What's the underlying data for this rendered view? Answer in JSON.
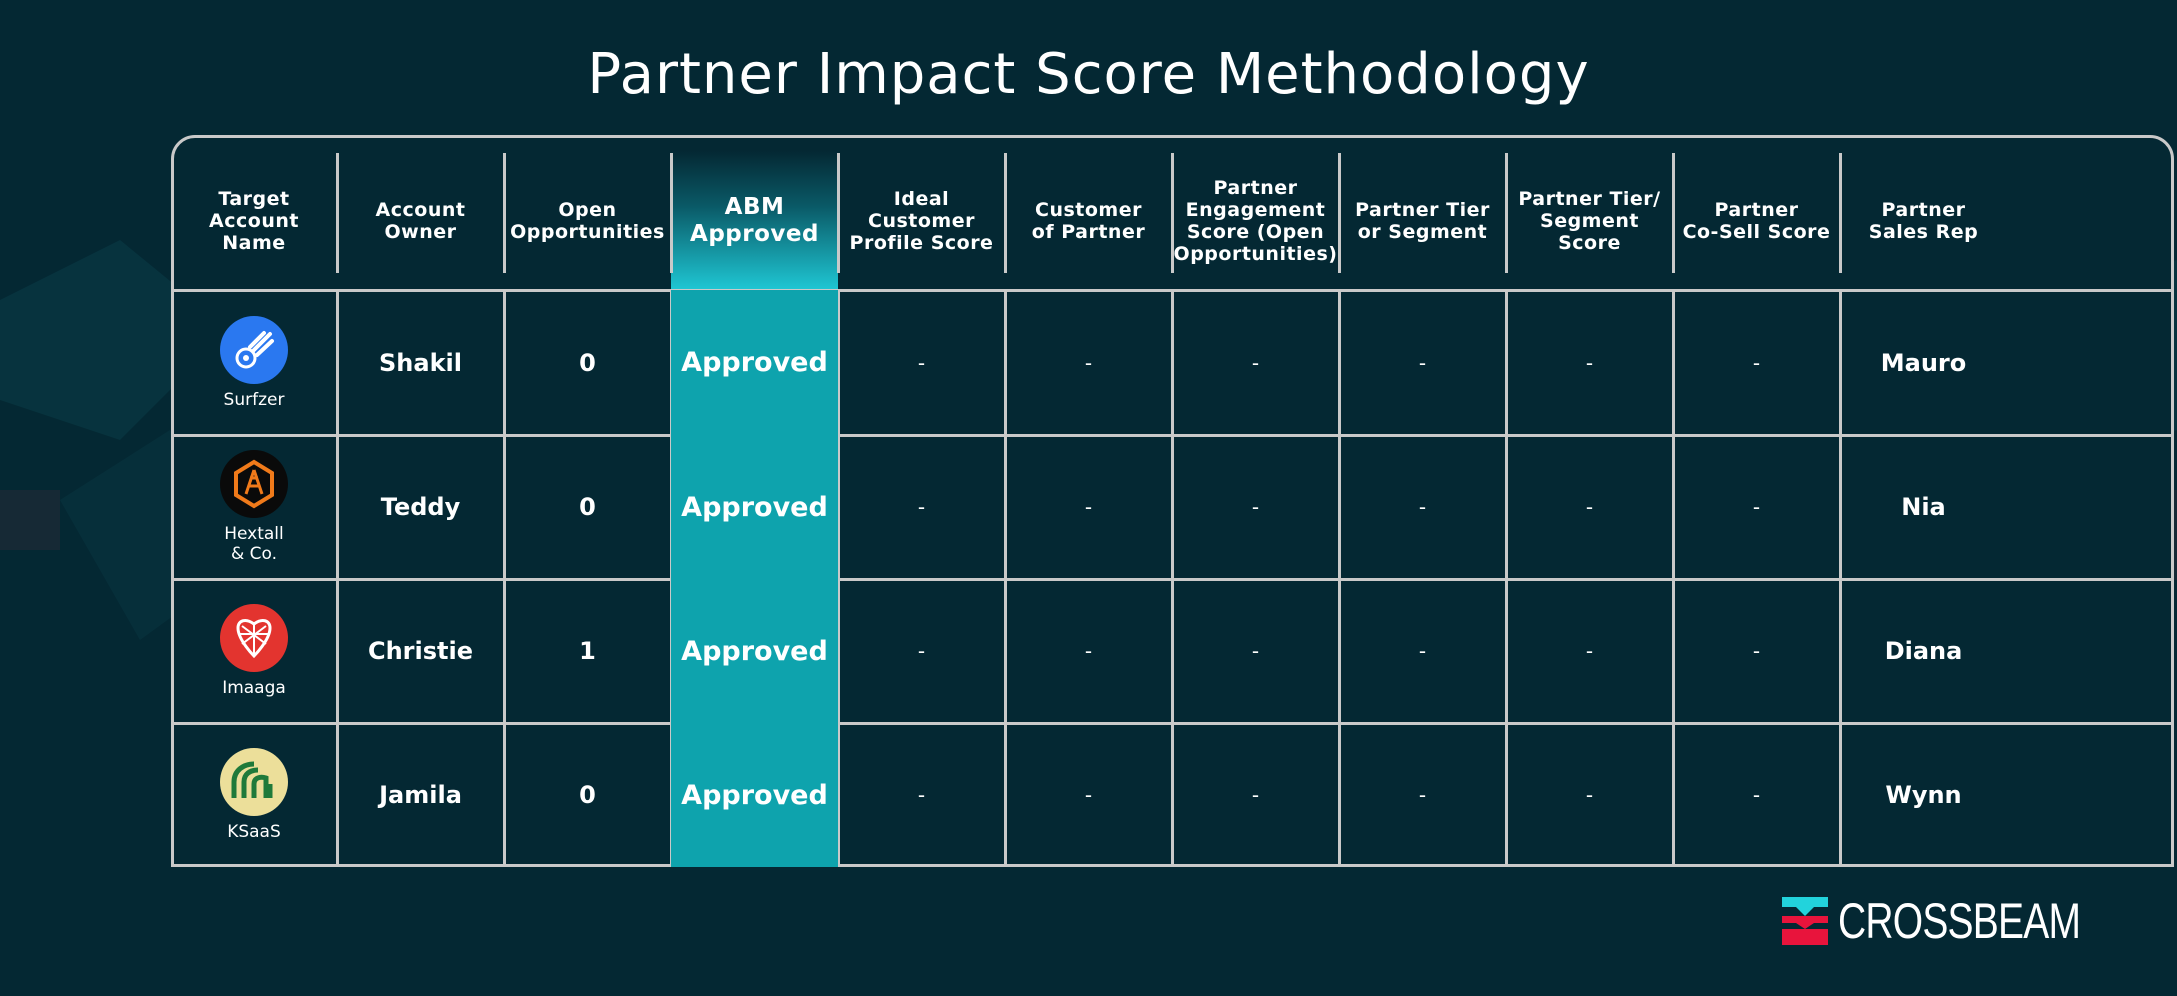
{
  "title": "Partner Impact Score Methodology",
  "columns": [
    "Target\nAccount\nName",
    "Account\nOwner",
    "Open\nOpportunities",
    "ABM\nApproved",
    "Ideal\nCustomer\nProfile Score",
    "Customer\nof Partner",
    "Partner\nEngagement\nScore (Open\nOpportunities)",
    "Partner Tier\nor Segment",
    "Partner Tier/\nSegment Score",
    "Partner\nCo-Sell Score",
    "Partner\nSales Rep"
  ],
  "rows": [
    {
      "account": "Surfzer",
      "logo_icon": "comet-icon",
      "logo_color": "#2a78f0",
      "owner": "Shakil",
      "open_opps": "0",
      "abm": "Approved",
      "icp": "-",
      "customer_of_partner": "-",
      "engagement": "-",
      "tier": "-",
      "tier_score": "-",
      "cosell": "-",
      "sales_rep": "Mauro"
    },
    {
      "account": "Hextall\n& Co.",
      "logo_icon": "hexagon-tower-icon",
      "logo_color": "#0a0a0a",
      "owner": "Teddy",
      "open_opps": "0",
      "abm": "Approved",
      "icp": "-",
      "customer_of_partner": "-",
      "engagement": "-",
      "tier": "-",
      "tier_score": "-",
      "cosell": "-",
      "sales_rep": "Nia"
    },
    {
      "account": "Imaaga",
      "logo_icon": "shield-lattice-icon",
      "logo_color": "#e3342f",
      "owner": "Christie",
      "open_opps": "1",
      "abm": "Approved",
      "icp": "-",
      "customer_of_partner": "-",
      "engagement": "-",
      "tier": "-",
      "tier_score": "-",
      "cosell": "-",
      "sales_rep": "Diana"
    },
    {
      "account": "KSaaS",
      "logo_icon": "arches-icon",
      "logo_color": "#ecdf9a",
      "owner": "Jamila",
      "open_opps": "0",
      "abm": "Approved",
      "icp": "-",
      "customer_of_partner": "-",
      "engagement": "-",
      "tier": "-",
      "tier_score": "-",
      "cosell": "-",
      "sales_rep": "Wynn"
    }
  ],
  "colors": {
    "background": "#042833",
    "abm_highlight": "#0ea3ad",
    "grid": "#c9c9c9",
    "brand_cyan": "#22d3dc",
    "brand_red": "#e8143c"
  },
  "brand": {
    "name": "CROSSBEAM",
    "icon": "crossbeam-logo-icon"
  }
}
